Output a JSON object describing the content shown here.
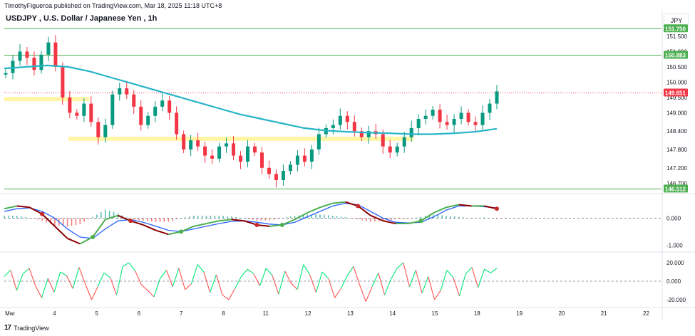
{
  "header": {
    "publisher": "TimothyFigueroa published on TradingView.com, Mar 18, 2025 11:18 UTC+8",
    "title": "USDJPY , U.S. Dollar / Japanese Yen , 1h",
    "currency": "JPY"
  },
  "footer": {
    "brand": "TradingView"
  },
  "colors": {
    "up": "#089981",
    "down": "#f23645",
    "ma": "#26b5c6",
    "green_line": "#4caf50",
    "red_dashed": "#f23645",
    "support_band": "#fff59d",
    "blue_wave": "#2962ff",
    "dark_red_wave": "#8b0000",
    "osc_green": "#00e676",
    "osc_red": "#ff5252"
  },
  "chart_data": [
    {
      "type": "candlestick",
      "title": "USDJPY , U.S. Dollar / Japanese Yen , 1h",
      "y_ticks": [
        "151.500",
        "151.000",
        "150.500",
        "150.000",
        "149.500",
        "149.000",
        "148.400",
        "147.800",
        "147.200",
        "146.700"
      ],
      "ylim": [
        146.45,
        151.85
      ],
      "x_ticks": [
        "Mar",
        "4",
        "5",
        "6",
        "7",
        "8",
        "11",
        "12",
        "13",
        "14",
        "15",
        "18",
        "19",
        "20",
        "21",
        "22"
      ],
      "horizontal_lines": [
        {
          "label": "151.750",
          "value": 151.75,
          "color": "#4caf50"
        },
        {
          "label": "150.883",
          "value": 150.883,
          "color": "#4caf50"
        },
        {
          "label": "149.651",
          "value": 149.651,
          "color": "#f23645",
          "style": "dotted"
        },
        {
          "label": "146.512",
          "value": 146.512,
          "color": "#4caf50"
        }
      ],
      "support_zones": [
        {
          "from": "Mar",
          "to": "5",
          "value": 149.45
        },
        {
          "from": "4",
          "to": "14",
          "value": 148.15
        }
      ],
      "close_series": [
        150.3,
        150.7,
        151.0,
        150.8,
        150.4,
        150.9,
        151.3,
        150.5,
        149.5,
        149.0,
        148.9,
        149.3,
        148.7,
        148.2,
        148.6,
        149.6,
        149.8,
        149.6,
        149.2,
        148.6,
        148.9,
        149.2,
        149.4,
        149.0,
        148.3,
        147.8,
        148.1,
        147.9,
        147.6,
        147.5,
        147.9,
        148.0,
        147.6,
        147.4,
        147.9,
        147.7,
        147.2,
        147.0,
        146.8,
        147.1,
        147.3,
        147.6,
        147.4,
        147.8,
        148.3,
        148.5,
        148.6,
        148.9,
        148.7,
        148.4,
        148.2,
        148.4,
        148.3,
        147.9,
        147.7,
        147.9,
        148.2,
        148.5,
        148.8,
        148.9,
        149.1,
        148.7,
        148.6,
        148.8,
        149.0,
        148.7,
        148.6,
        149.0,
        149.3,
        149.7
      ],
      "ma_series": [
        150.45,
        150.5,
        150.55,
        150.5,
        150.35,
        150.15,
        149.95,
        149.75,
        149.55,
        149.35,
        149.15,
        148.95,
        148.8,
        148.65,
        148.5,
        148.42,
        148.38,
        148.35,
        148.33,
        148.3,
        148.3,
        148.33,
        148.38,
        148.48
      ],
      "last_price": 149.651
    },
    {
      "type": "line",
      "panel": "momentum-cross",
      "y_ticks": [
        "0.000",
        "-1.000"
      ],
      "ylim": [
        -1.2,
        0.75
      ],
      "fast_series": [
        0.35,
        0.45,
        0.4,
        0.15,
        -0.3,
        -0.75,
        -0.95,
        -0.7,
        -0.05,
        0.1,
        -0.1,
        -0.25,
        -0.45,
        -0.6,
        -0.5,
        -0.3,
        -0.2,
        -0.1,
        -0.05,
        -0.1,
        -0.25,
        -0.3,
        -0.25,
        -0.05,
        0.2,
        0.4,
        0.55,
        0.6,
        0.45,
        0.1,
        -0.1,
        -0.2,
        -0.2,
        -0.1,
        0.2,
        0.4,
        0.5,
        0.45,
        0.45,
        0.35
      ],
      "slow_series": [
        0.25,
        0.35,
        0.38,
        0.25,
        0.0,
        -0.4,
        -0.7,
        -0.75,
        -0.4,
        -0.1,
        -0.05,
        -0.15,
        -0.3,
        -0.45,
        -0.5,
        -0.4,
        -0.3,
        -0.2,
        -0.12,
        -0.1,
        -0.15,
        -0.22,
        -0.25,
        -0.15,
        0.05,
        0.25,
        0.45,
        0.55,
        0.5,
        0.25,
        0.0,
        -0.15,
        -0.18,
        -0.15,
        0.05,
        0.3,
        0.45,
        0.45,
        0.42,
        0.38
      ]
    },
    {
      "type": "line",
      "panel": "oscillator",
      "y_ticks": [
        "20.000",
        "0.000",
        "-20.000"
      ],
      "ylim": [
        -27,
        27
      ],
      "values": [
        5,
        12,
        -10,
        8,
        14,
        -5,
        -18,
        3,
        -12,
        10,
        6,
        -8,
        15,
        -3,
        -20,
        -6,
        9,
        4,
        -15,
        16,
        20,
        11,
        -4,
        -10,
        -17,
        3,
        12,
        -6,
        14,
        -9,
        -3,
        18,
        10,
        -12,
        7,
        -15,
        -20,
        -8,
        5,
        13,
        8,
        -5,
        14,
        6,
        -14,
        11,
        -2,
        -9,
        18,
        7,
        -12,
        10,
        3,
        -18,
        -8,
        6,
        16,
        -4,
        -22,
        -6,
        9,
        -15,
        2,
        14,
        20,
        -6,
        12,
        -13,
        5,
        -20,
        -10,
        12,
        4,
        -16,
        8,
        15,
        -7,
        13,
        9,
        14
      ]
    }
  ]
}
